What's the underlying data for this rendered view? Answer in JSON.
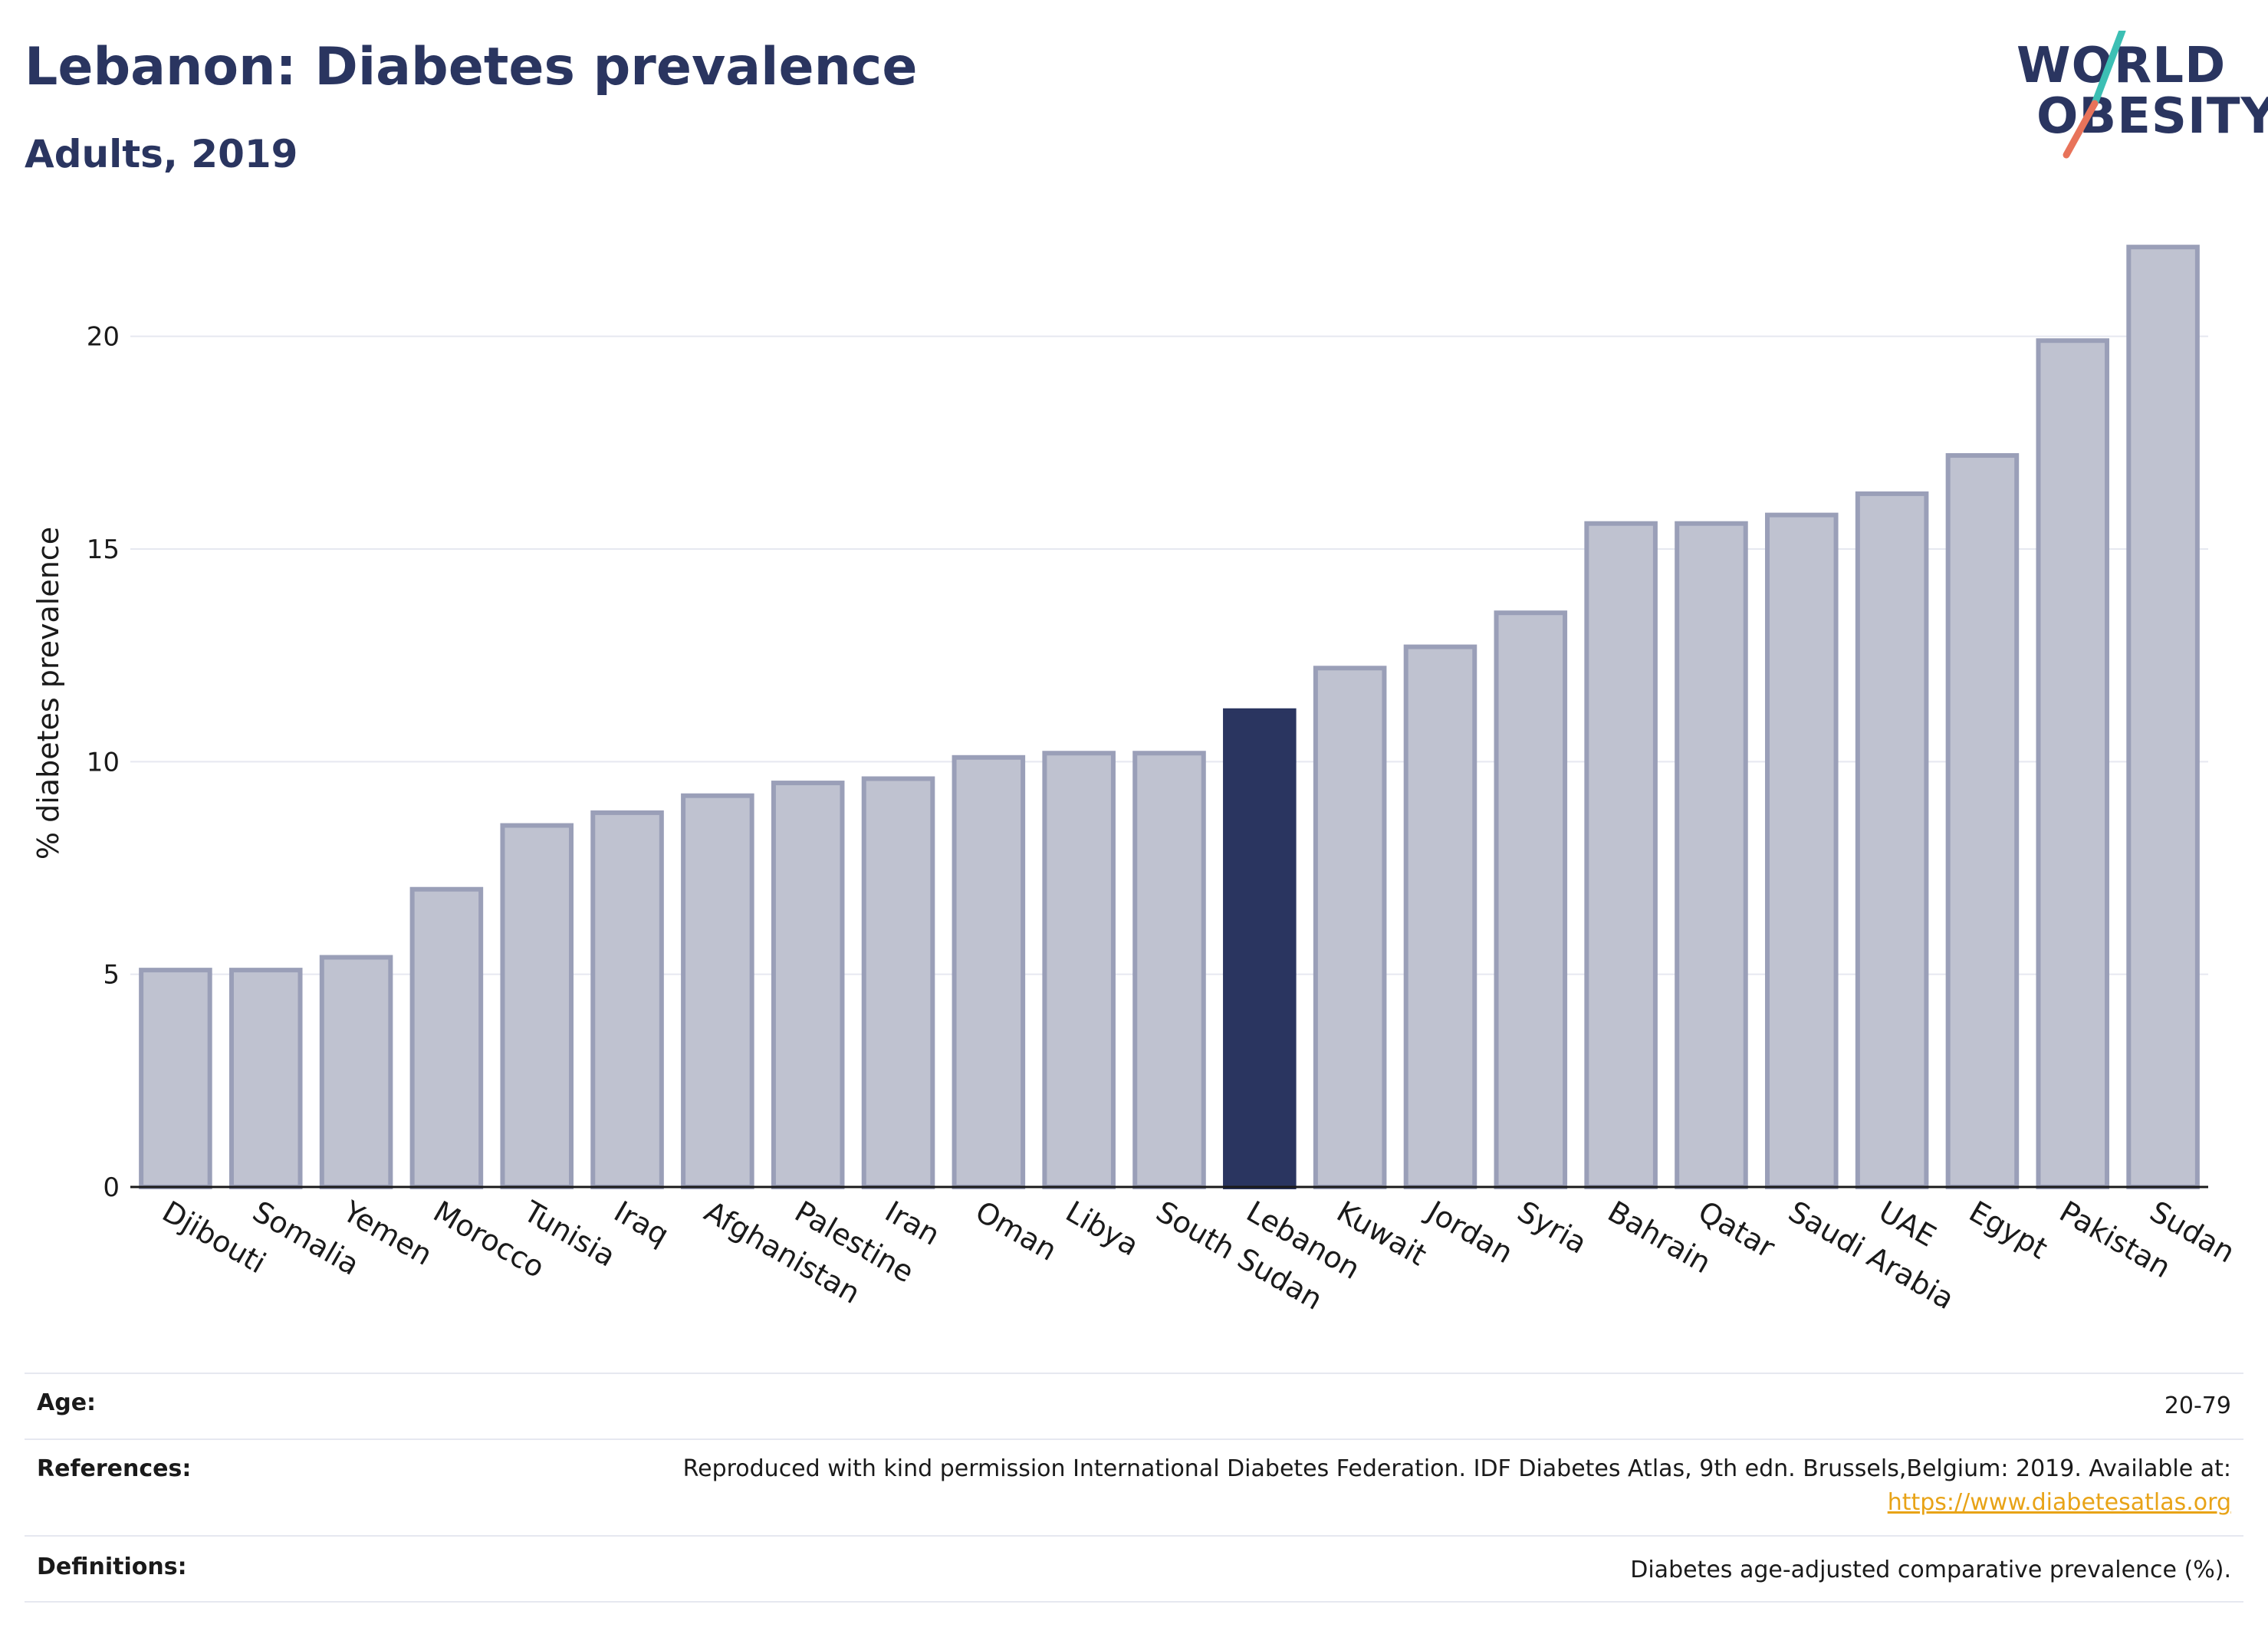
{
  "header": {
    "title": "Lebanon: Diabetes prevalence",
    "subtitle": "Adults, 2019"
  },
  "logo": {
    "line1": "WORLD",
    "line2": "OBESITY",
    "icon": "world-obesity-slash-icon",
    "slash_colors": [
      "#3cbfb4",
      "#e8735a"
    ]
  },
  "chart_data": {
    "type": "bar",
    "title": "Lebanon: Diabetes prevalence",
    "subtitle": "Adults, 2019",
    "xlabel": "",
    "ylabel": "% diabetes prevalence",
    "ylim": [
      0,
      22.5
    ],
    "yticks": [
      0,
      5,
      10,
      15,
      20
    ],
    "grid": true,
    "highlight": "Lebanon",
    "colors": {
      "bar": "#bfc2d0",
      "bar_border": "#9a9fb8",
      "highlight": "#2a3560",
      "grid": "#e6e8f0"
    },
    "categories": [
      "Djibouti",
      "Somalia",
      "Yemen",
      "Morocco",
      "Tunisia",
      "Iraq",
      "Afghanistan",
      "Palestine",
      "Iran",
      "Oman",
      "Libya",
      "South Sudan",
      "Lebanon",
      "Kuwait",
      "Jordan",
      "Syria",
      "Bahrain",
      "Qatar",
      "Saudi Arabia",
      "UAE",
      "Egypt",
      "Pakistan",
      "Sudan"
    ],
    "values": [
      5.1,
      5.1,
      5.4,
      7.0,
      8.5,
      8.8,
      9.2,
      9.5,
      9.6,
      10.1,
      10.2,
      10.2,
      11.2,
      12.2,
      12.7,
      13.5,
      15.6,
      15.6,
      15.8,
      16.3,
      17.2,
      19.9,
      22.1
    ]
  },
  "meta": {
    "age_label": "Age:",
    "age_value": "20-79",
    "references_label": "References:",
    "references_value": "Reproduced with kind permission International Diabetes Federation. IDF Diabetes Atlas, 9th edn. Brussels,Belgium: 2019. Available at:",
    "references_link": "https://www.diabetesatlas.org",
    "definitions_label": "Definitions:",
    "definitions_value": "Diabetes age-adjusted comparative prevalence (%)."
  }
}
